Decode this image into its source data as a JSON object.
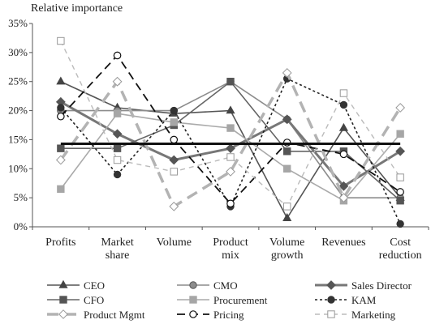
{
  "chart_data": {
    "type": "line",
    "title": "Relative importance",
    "xlabel": "",
    "ylabel": "Relative importance",
    "categories": [
      [
        "Profits"
      ],
      [
        "Market",
        "share"
      ],
      [
        "Volume"
      ],
      [
        "Product",
        "mix"
      ],
      [
        "Volume",
        "growth"
      ],
      [
        "Revenues"
      ],
      [
        "Cost",
        "reduction"
      ]
    ],
    "ylim": [
      0,
      35
    ],
    "yticks": [
      0,
      5,
      10,
      15,
      20,
      25,
      30,
      35
    ],
    "ytick_labels": [
      "0%",
      "5%",
      "10%",
      "15%",
      "20%",
      "25%",
      "30%",
      "35%"
    ],
    "grid": false,
    "legend_position": "bottom",
    "series": [
      {
        "name": "CEO",
        "color": "#555555",
        "dash": "",
        "width": 1.6,
        "marker": "triangle",
        "values": [
          25,
          20.5,
          19.5,
          20,
          1.5,
          17,
          5
        ]
      },
      {
        "name": "CMO",
        "color": "#8c8c8c",
        "dash": "",
        "width": 1.6,
        "marker": "circle-filled",
        "values": [
          20,
          20,
          20,
          25,
          18.5,
          5,
          5
        ]
      },
      {
        "name": "Sales Director",
        "color": "#777777",
        "dash": "",
        "width": 3,
        "marker": "diamond",
        "values": [
          21.5,
          16,
          11.5,
          13.5,
          18.5,
          7,
          13
        ]
      },
      {
        "name": "CFO",
        "color": "#666666",
        "dash": "",
        "width": 1.6,
        "marker": "square",
        "values": [
          13.5,
          13.5,
          17.5,
          25,
          13,
          13,
          4.5
        ]
      },
      {
        "name": "Procurement",
        "color": "#aaaaaa",
        "dash": "",
        "width": 1.6,
        "marker": "square-light",
        "values": [
          6.5,
          19.5,
          18,
          17,
          10,
          4.5,
          16
        ]
      },
      {
        "name": "KAM",
        "color": "#222222",
        "dash": "3,3",
        "width": 1.6,
        "marker": "circle-dark",
        "values": [
          20.5,
          9,
          20,
          3.5,
          25.5,
          21,
          0.5
        ]
      },
      {
        "name": "Product Mgmt",
        "color": "#b3b3b3",
        "dash": "14,8",
        "width": 3.5,
        "marker": "diamond-open",
        "values": [
          11.5,
          25,
          3.5,
          9.5,
          26.5,
          5,
          20.5
        ]
      },
      {
        "name": "Pricing",
        "color": "#111111",
        "dash": "10,6",
        "width": 1.8,
        "marker": "circle-open",
        "values": [
          19,
          29.5,
          15,
          4,
          14.5,
          12.5,
          6
        ]
      },
      {
        "name": "Marketing",
        "color": "#bbbbbb",
        "dash": "6,5",
        "width": 1.4,
        "marker": "square-open",
        "values": [
          32,
          11.5,
          9.5,
          12,
          3.5,
          23,
          8.5
        ]
      }
    ],
    "reference_line": {
      "value": 14.3,
      "color": "#111111"
    }
  }
}
